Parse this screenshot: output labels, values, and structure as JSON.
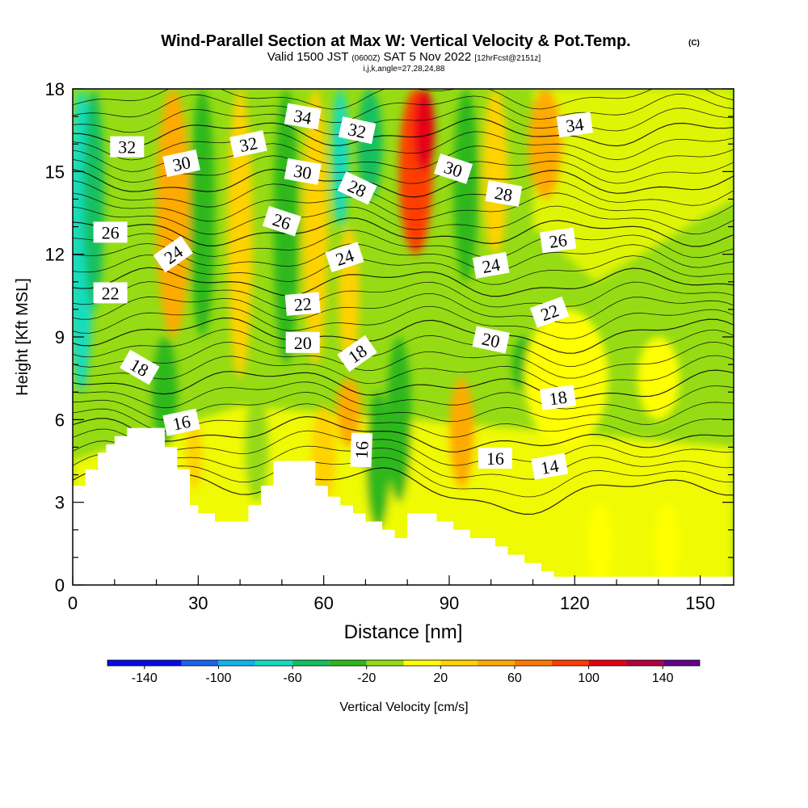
{
  "chart_data": {
    "type": "contour-section",
    "title": "Wind-Parallel Section at Max W: Vertical Velocity & Pot.Temp.",
    "title_mark": "(C)",
    "subtitle_parts": [
      "Valid 1500 JST ",
      "(0600Z)",
      " SAT 5 Nov 2022 ",
      "[12hrFcst@2151z]"
    ],
    "subtitle2": "i,j,k,angle=27,28,24,88",
    "xlabel": "Distance [nm]",
    "ylabel": "Height [Kft MSL]",
    "xlim": [
      0,
      158
    ],
    "ylim": [
      0,
      18
    ],
    "x_ticks": [
      0,
      30,
      60,
      90,
      120,
      150
    ],
    "y_ticks": [
      0,
      3,
      6,
      9,
      12,
      15,
      18
    ],
    "colorbar": {
      "label": "Vertical Velocity [cm/s]",
      "ticks": [
        "-140",
        "-100",
        "-60",
        "-20",
        "20",
        "60",
        "100",
        "140"
      ],
      "tick_values": [
        -140,
        -100,
        -60,
        -20,
        20,
        60,
        100,
        140
      ],
      "range": [
        -160,
        160
      ],
      "bins": [
        {
          "from": -160,
          "to": -120,
          "color": "#0a0ae6"
        },
        {
          "from": -120,
          "to": -100,
          "color": "#1a64f0"
        },
        {
          "from": -100,
          "to": -80,
          "color": "#10b4f0"
        },
        {
          "from": -80,
          "to": -60,
          "color": "#14dcc0"
        },
        {
          "from": -60,
          "to": -40,
          "color": "#14c060"
        },
        {
          "from": -40,
          "to": -20,
          "color": "#2eb81e"
        },
        {
          "from": -20,
          "to": 0,
          "color": "#96dc14"
        },
        {
          "from": 0,
          "to": 20,
          "color": "#ffff00"
        },
        {
          "from": 20,
          "to": 40,
          "color": "#ffd200"
        },
        {
          "from": 40,
          "to": 60,
          "color": "#ffaa00"
        },
        {
          "from": 60,
          "to": 80,
          "color": "#ff7800"
        },
        {
          "from": 80,
          "to": 100,
          "color": "#ff3c00"
        },
        {
          "from": 100,
          "to": 120,
          "color": "#e60014"
        },
        {
          "from": 120,
          "to": 140,
          "color": "#b4003c"
        },
        {
          "from": 140,
          "to": 160,
          "color": "#64008c"
        }
      ]
    },
    "vertical_velocity_bands": [
      {
        "x": 2,
        "half_width": 3,
        "bottom": 7,
        "top": 18,
        "value": -70
      },
      {
        "x": 5,
        "half_width": 2.5,
        "bottom": 10,
        "top": 18,
        "value": -50
      },
      {
        "x": 16,
        "half_width": 3,
        "bottom": 12,
        "top": 18,
        "value": -20
      },
      {
        "x": 22,
        "half_width": 3,
        "bottom": 5,
        "top": 9,
        "value": -30
      },
      {
        "x": 24,
        "half_width": 4,
        "bottom": 9,
        "top": 18,
        "value": 40
      },
      {
        "x": 31,
        "half_width": 3,
        "bottom": 9,
        "top": 18,
        "value": -35
      },
      {
        "x": 29,
        "half_width": 2,
        "bottom": 3.5,
        "top": 6,
        "value": 30
      },
      {
        "x": 40,
        "half_width": 3,
        "bottom": 7.5,
        "top": 18,
        "value": 30
      },
      {
        "x": 44,
        "half_width": 3,
        "bottom": 3,
        "top": 7,
        "value": -15
      },
      {
        "x": 51,
        "half_width": 3,
        "bottom": 8,
        "top": 18,
        "value": -35
      },
      {
        "x": 58,
        "half_width": 3,
        "bottom": 8,
        "top": 18,
        "value": 35
      },
      {
        "x": 60,
        "half_width": 3,
        "bottom": 3,
        "top": 6.5,
        "value": 20
      },
      {
        "x": 64,
        "half_width": 2,
        "bottom": 13,
        "top": 18,
        "value": -75
      },
      {
        "x": 66,
        "half_width": 3,
        "bottom": 5,
        "top": 7.5,
        "value": 45
      },
      {
        "x": 66,
        "half_width": 2.5,
        "bottom": 8,
        "top": 13,
        "value": 20
      },
      {
        "x": 71,
        "half_width": 3,
        "bottom": 14,
        "top": 18,
        "value": -60
      },
      {
        "x": 73,
        "half_width": 3,
        "bottom": 2,
        "top": 7,
        "value": -30
      },
      {
        "x": 78,
        "half_width": 3,
        "bottom": 3,
        "top": 9,
        "value": -35
      },
      {
        "x": 82,
        "half_width": 4,
        "bottom": 12,
        "top": 18,
        "value": 80
      },
      {
        "x": 84,
        "half_width": 2.5,
        "bottom": 15,
        "top": 18,
        "value": 110
      },
      {
        "x": 93,
        "half_width": 3,
        "bottom": 3.5,
        "top": 7.5,
        "value": 50
      },
      {
        "x": 94,
        "half_width": 3,
        "bottom": 11,
        "top": 18,
        "value": -30
      },
      {
        "x": 101,
        "half_width": 3,
        "bottom": 12,
        "top": 18,
        "value": 30
      },
      {
        "x": 108,
        "half_width": 3,
        "bottom": 7,
        "top": 9,
        "value": -30
      },
      {
        "x": 113,
        "half_width": 4,
        "bottom": 14,
        "top": 18,
        "value": 40
      },
      {
        "x": 118,
        "half_width": 10,
        "bottom": 5,
        "top": 10,
        "value": 10
      },
      {
        "x": 140,
        "half_width": 5,
        "bottom": 6,
        "top": 9,
        "value": 10
      },
      {
        "x": 126,
        "half_width": 3,
        "bottom": 0,
        "top": 3,
        "value": 15
      },
      {
        "x": 142,
        "half_width": 3,
        "bottom": 0,
        "top": 3,
        "value": 15
      }
    ],
    "terrain": [
      [
        0,
        3.6
      ],
      [
        3,
        3.6
      ],
      [
        3,
        4.2
      ],
      [
        6,
        4.2
      ],
      [
        6,
        4.8
      ],
      [
        8,
        4.8
      ],
      [
        8,
        5.1
      ],
      [
        10,
        5.1
      ],
      [
        10,
        5.4
      ],
      [
        13,
        5.4
      ],
      [
        13,
        5.7
      ],
      [
        22,
        5.7
      ],
      [
        22,
        5.0
      ],
      [
        25,
        5.0
      ],
      [
        25,
        4.2
      ],
      [
        28,
        4.2
      ],
      [
        28,
        2.9
      ],
      [
        30,
        2.9
      ],
      [
        30,
        2.6
      ],
      [
        34,
        2.6
      ],
      [
        34,
        2.3
      ],
      [
        42,
        2.3
      ],
      [
        42,
        2.9
      ],
      [
        45,
        2.9
      ],
      [
        45,
        3.6
      ],
      [
        48,
        3.6
      ],
      [
        48,
        4.5
      ],
      [
        58,
        4.5
      ],
      [
        58,
        3.6
      ],
      [
        61,
        3.6
      ],
      [
        61,
        3.2
      ],
      [
        64,
        3.2
      ],
      [
        64,
        2.9
      ],
      [
        67,
        2.9
      ],
      [
        67,
        2.6
      ],
      [
        70,
        2.6
      ],
      [
        70,
        2.3
      ],
      [
        74,
        2.3
      ],
      [
        74,
        2.0
      ],
      [
        77,
        2.0
      ],
      [
        77,
        1.7
      ],
      [
        80,
        1.7
      ],
      [
        80,
        2.6
      ],
      [
        87,
        2.6
      ],
      [
        87,
        2.3
      ],
      [
        91,
        2.3
      ],
      [
        91,
        2.0
      ],
      [
        95,
        2.0
      ],
      [
        95,
        1.7
      ],
      [
        101,
        1.7
      ],
      [
        101,
        1.4
      ],
      [
        104,
        1.4
      ],
      [
        104,
        1.1
      ],
      [
        108,
        1.1
      ],
      [
        108,
        0.8
      ],
      [
        112,
        0.8
      ],
      [
        112,
        0.5
      ],
      [
        115,
        0.5
      ],
      [
        115,
        0.3
      ],
      [
        158,
        0.3
      ]
    ],
    "theta_levels_bold": [
      14,
      16,
      18,
      20,
      22,
      24,
      26,
      28,
      30,
      32,
      34
    ],
    "contour_labels": [
      {
        "text": "32",
        "x": 13,
        "y": 15.9,
        "rot": 0
      },
      {
        "text": "30",
        "x": 26,
        "y": 15.3,
        "rot": -12
      },
      {
        "text": "32",
        "x": 42,
        "y": 16.0,
        "rot": -12
      },
      {
        "text": "34",
        "x": 55,
        "y": 17.0,
        "rot": 10
      },
      {
        "text": "32",
        "x": 68,
        "y": 16.5,
        "rot": 12
      },
      {
        "text": "30",
        "x": 55,
        "y": 15.0,
        "rot": 10
      },
      {
        "text": "28",
        "x": 68,
        "y": 14.4,
        "rot": 25
      },
      {
        "text": "30",
        "x": 91,
        "y": 15.1,
        "rot": 18
      },
      {
        "text": "28",
        "x": 103,
        "y": 14.2,
        "rot": 10
      },
      {
        "text": "34",
        "x": 120,
        "y": 16.7,
        "rot": -8
      },
      {
        "text": "26",
        "x": 9,
        "y": 12.8,
        "rot": 0
      },
      {
        "text": "26",
        "x": 50,
        "y": 13.2,
        "rot": 18
      },
      {
        "text": "26",
        "x": 116,
        "y": 12.5,
        "rot": -8
      },
      {
        "text": "24",
        "x": 24,
        "y": 12.0,
        "rot": -35
      },
      {
        "text": "24",
        "x": 65,
        "y": 11.9,
        "rot": -18
      },
      {
        "text": "24",
        "x": 100,
        "y": 11.6,
        "rot": -10
      },
      {
        "text": "22",
        "x": 9,
        "y": 10.6,
        "rot": 0
      },
      {
        "text": "22",
        "x": 55,
        "y": 10.2,
        "rot": -5
      },
      {
        "text": "22",
        "x": 114,
        "y": 9.9,
        "rot": -20
      },
      {
        "text": "20",
        "x": 55,
        "y": 8.8,
        "rot": 0
      },
      {
        "text": "20",
        "x": 100,
        "y": 8.9,
        "rot": 12
      },
      {
        "text": "18",
        "x": 16,
        "y": 7.9,
        "rot": 30
      },
      {
        "text": "18",
        "x": 68,
        "y": 8.4,
        "rot": -35
      },
      {
        "text": "18",
        "x": 116,
        "y": 6.8,
        "rot": -8
      },
      {
        "text": "16",
        "x": 26,
        "y": 5.9,
        "rot": -12
      },
      {
        "text": "16",
        "x": 69,
        "y": 4.9,
        "rot": -88
      },
      {
        "text": "16",
        "x": 101,
        "y": 4.6,
        "rot": 0
      },
      {
        "text": "14",
        "x": 114,
        "y": 4.3,
        "rot": -10
      }
    ]
  }
}
